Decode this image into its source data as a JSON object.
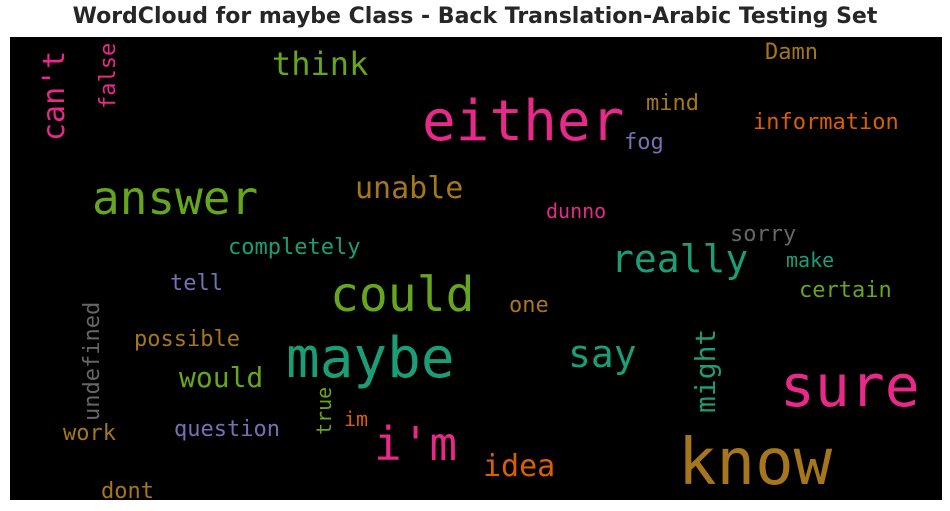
{
  "title": "WordCloud for maybe Class - Back Translation-Arabic Testing Set",
  "words": [
    {
      "text": "either",
      "color": "#e7298a"
    },
    {
      "text": "know",
      "color": "#a6761d"
    },
    {
      "text": "sure",
      "color": "#e7298a"
    },
    {
      "text": "maybe",
      "color": "#1b9e77"
    },
    {
      "text": "could",
      "color": "#66a61e"
    },
    {
      "text": "answer",
      "color": "#66a61e"
    },
    {
      "text": "i'm",
      "color": "#e7298a"
    },
    {
      "text": "really",
      "color": "#1b9e77"
    },
    {
      "text": "say",
      "color": "#1b9e77"
    },
    {
      "text": "can't",
      "color": "#e7298a"
    },
    {
      "text": "think",
      "color": "#66a61e"
    },
    {
      "text": "unable",
      "color": "#a6761d"
    },
    {
      "text": "might",
      "color": "#1b9e77"
    },
    {
      "text": "idea",
      "color": "#d95f02"
    },
    {
      "text": "would",
      "color": "#66a61e"
    },
    {
      "text": "information",
      "color": "#d95f02"
    },
    {
      "text": "undefined",
      "color": "#666666"
    },
    {
      "text": "completely",
      "color": "#1b9e77"
    },
    {
      "text": "possible",
      "color": "#a6761d"
    },
    {
      "text": "question",
      "color": "#7570b3"
    },
    {
      "text": "certain",
      "color": "#66a61e"
    },
    {
      "text": "sorry",
      "color": "#666666"
    },
    {
      "text": "false",
      "color": "#e7298a"
    },
    {
      "text": "Damn",
      "color": "#a6761d"
    },
    {
      "text": "mind",
      "color": "#a6761d"
    },
    {
      "text": "fog",
      "color": "#7570b3"
    },
    {
      "text": "dunno",
      "color": "#e7298a"
    },
    {
      "text": "make",
      "color": "#1b9e77"
    },
    {
      "text": "tell",
      "color": "#7570b3"
    },
    {
      "text": "one",
      "color": "#a6761d"
    },
    {
      "text": "true",
      "color": "#66a61e"
    },
    {
      "text": "im",
      "color": "#d95f02"
    },
    {
      "text": "work",
      "color": "#a6761d"
    },
    {
      "text": "dont",
      "color": "#a6761d"
    }
  ]
}
